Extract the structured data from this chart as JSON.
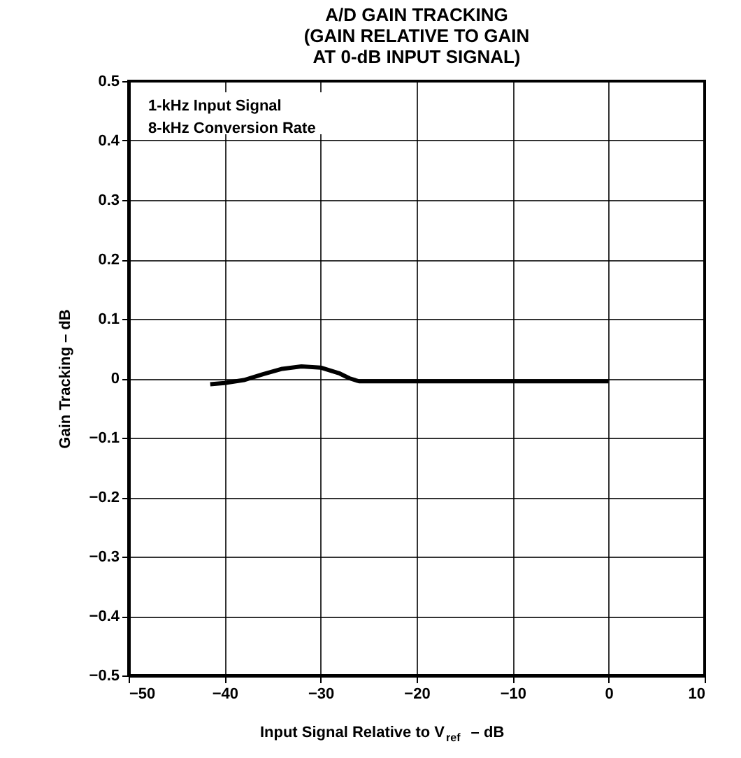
{
  "chart_data": {
    "type": "line",
    "title": [
      "A/D GAIN TRACKING",
      "(GAIN RELATIVE TO GAIN",
      "AT 0-dB INPUT SIGNAL)"
    ],
    "xlabel": "Input Signal Relative to V$_{ref}$ – dB",
    "ylabel": "Gain Tracking – dB",
    "annotations": [
      "1-kHz Input Signal",
      "8-kHz Conversion Rate"
    ],
    "series": [
      {
        "color": "#000000",
        "x": [
          -41.5,
          -40,
          -38,
          -36,
          -34,
          -32,
          -30,
          -28,
          -27,
          -26,
          -24,
          -20,
          -15,
          -10,
          -5,
          0
        ],
        "values": [
          -0.01,
          -0.008,
          -0.003,
          0.007,
          0.016,
          0.02,
          0.018,
          0.008,
          0.0,
          -0.005,
          -0.005,
          -0.005,
          -0.005,
          -0.005,
          -0.005,
          -0.005
        ]
      }
    ],
    "xlim": [
      -50,
      10
    ],
    "xticks": [
      -50,
      -40,
      -30,
      -20,
      -10,
      0,
      10
    ],
    "ylim": [
      -0.5,
      0.5
    ],
    "yticks": [
      -0.5,
      -0.4,
      -0.3,
      -0.2,
      -0.1,
      0,
      0.1,
      0.2,
      0.3,
      0.4,
      0.5
    ],
    "grid": true,
    "marker": "none",
    "line_style": "solid"
  }
}
